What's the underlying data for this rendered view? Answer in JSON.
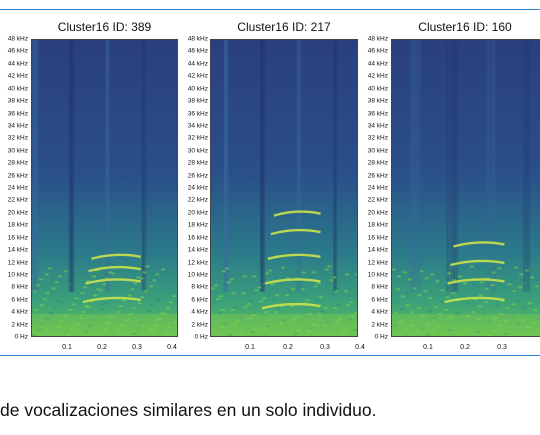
{
  "panels": [
    {
      "title": "Cluster16 ID: 389",
      "x_ticks": [
        "0.1",
        "0.2",
        "0.3",
        "0.4"
      ],
      "bands_khz": [
        6,
        9,
        11,
        13
      ]
    },
    {
      "title": "Cluster16 ID: 217",
      "x_ticks": [
        "0.1",
        "0.2",
        "0.3",
        "0.4"
      ],
      "bands_khz": [
        5,
        9,
        13,
        17,
        20
      ]
    },
    {
      "title": "Cluster16 ID: 160",
      "x_ticks": [
        "0.1",
        "0.2",
        "0.3"
      ],
      "bands_khz": [
        6,
        9,
        12,
        15
      ]
    }
  ],
  "y_ticks": [
    "0 Hz",
    "2 kHz",
    "4 kHz",
    "6 kHz",
    "8 kHz",
    "10 kHz",
    "12 kHz",
    "14 kHz",
    "16 kHz",
    "18 kHz",
    "20 kHz",
    "22 kHz",
    "24 kHz",
    "26 kHz",
    "28 kHz",
    "30 kHz",
    "32 kHz",
    "34 kHz",
    "36 kHz",
    "38 kHz",
    "40 kHz",
    "42 kHz",
    "44 kHz",
    "46 kHz",
    "48 kHz"
  ],
  "y_max_khz": 48,
  "colors": {
    "frame": "#2d7fd0",
    "spec_top": "#2a4f8a",
    "spec_mid": "#2b7a8a",
    "spec_low": "#3aa07a",
    "band": "#cbe24a"
  },
  "caption": "de vocalizaciones similares en un solo individuo."
}
